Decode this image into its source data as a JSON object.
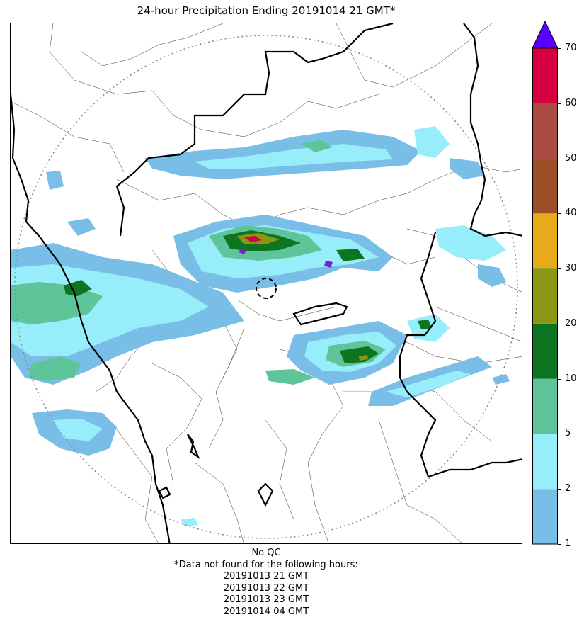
{
  "title": "24-hour Precipitation Ending 20191014 21 GMT*",
  "colorbar": {
    "ticks": [
      "1",
      "2",
      "5",
      "10",
      "20",
      "30",
      "40",
      "50",
      "60",
      "70"
    ],
    "colors": [
      "#79bee6",
      "#97edfa",
      "#5ec49a",
      "#0e7420",
      "#8b9617",
      "#e7aa1b",
      "#9c4e27",
      "#a94942",
      "#d60043"
    ],
    "extend_color": "#5a00ff"
  },
  "notes": {
    "qc": "No QC",
    "missing_header": "*Data not found for the following hours:",
    "missing_hours": [
      "20191013 21 GMT",
      "20191013 22 GMT",
      "20191013 23 GMT",
      "20191014 04 GMT"
    ]
  },
  "map": {
    "precip_colors": {
      "light": "#79bee6",
      "cyan": "#97edfa",
      "teal": "#5ec49a",
      "green": "#0e7420",
      "olive": "#8b9617",
      "red": "#d60043",
      "purple": "#7a1fd0"
    },
    "range_ring_color": "#888888",
    "border_color": "#000000"
  }
}
